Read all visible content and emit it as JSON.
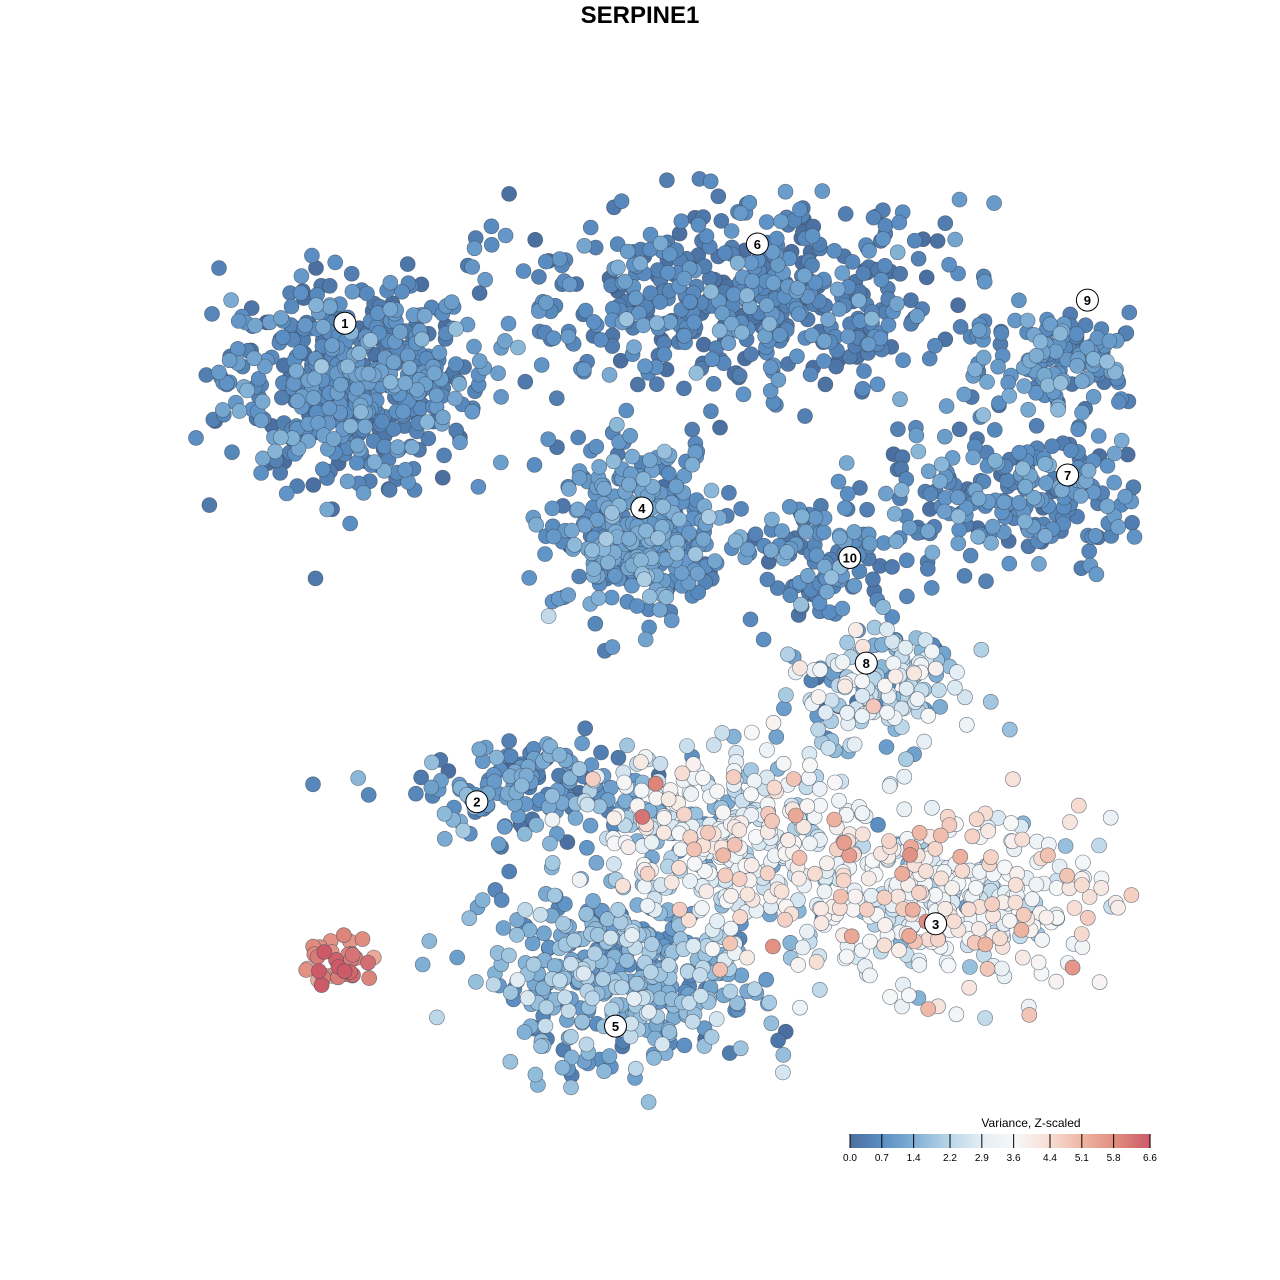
{
  "chart_data": {
    "type": "scatter",
    "title": "SERPINE1",
    "xlabel": "",
    "ylabel": "",
    "grid": false,
    "axes_visible": false,
    "colorbar": {
      "title": "Variance, Z-scaled",
      "min": 0.0,
      "max": 6.6,
      "ticks": [
        "0.0",
        "0.7",
        "1.4",
        "2.2",
        "2.9",
        "3.6",
        "4.4",
        "5.1",
        "5.8",
        "6.6"
      ],
      "tick_values": [
        0.0,
        0.7,
        1.4,
        2.2,
        2.9,
        3.6,
        4.4,
        5.1,
        5.8,
        6.6
      ],
      "colors": [
        "#4a6fa0",
        "#5b8fc4",
        "#84b3d6",
        "#bad6e8",
        "#e6eff5",
        "#f7f7f7",
        "#f7ddd3",
        "#eeb3a0",
        "#e08b7e",
        "#cc5a67"
      ],
      "placement": "bottom-right"
    },
    "clusters": [
      {
        "label": "1",
        "x": -9.5,
        "y": 7.9,
        "sd": [
          1.9,
          1.5
        ],
        "n": 560,
        "value_mean": 0.6,
        "value_sd": 0.4
      },
      {
        "label": "2",
        "x": -3.9,
        "y": -4.5,
        "sd": [
          1.8,
          0.8
        ],
        "n": 170,
        "value_mean": 0.8,
        "value_sd": 0.5
      },
      {
        "label": "3",
        "x": 8.3,
        "y": -8.0,
        "sd": [
          2.6,
          1.3
        ],
        "n": 380,
        "value_mean": 3.4,
        "value_sd": 0.9
      },
      {
        "label": "4",
        "x": -0.8,
        "y": 3.3,
        "sd": [
          1.3,
          1.3
        ],
        "n": 340,
        "value_mean": 0.9,
        "value_sd": 0.4
      },
      {
        "label": "5",
        "x": -1.2,
        "y": -10.2,
        "sd": [
          2.0,
          1.4
        ],
        "n": 420,
        "value_mean": 1.4,
        "value_sd": 0.6
      },
      {
        "label": "6",
        "x": 2.2,
        "y": 10.3,
        "sd": [
          3.3,
          1.4
        ],
        "n": 520,
        "value_mean": 0.5,
        "value_sd": 0.4
      },
      {
        "label": "7",
        "x": 11.3,
        "y": 4.5,
        "sd": [
          2.5,
          1.0
        ],
        "n": 260,
        "value_mean": 0.7,
        "value_sd": 0.4
      },
      {
        "label": "8",
        "x": 6.2,
        "y": -1.5,
        "sd": [
          1.4,
          0.9
        ],
        "n": 170,
        "value_mean": 2.0,
        "value_sd": 1.0
      },
      {
        "label": "9",
        "x": 12.1,
        "y": 8.5,
        "sd": [
          1.5,
          0.8
        ],
        "n": 140,
        "value_mean": 0.8,
        "value_sd": 0.4
      },
      {
        "label": "10",
        "x": 4.8,
        "y": 2.4,
        "sd": [
          1.2,
          1.0
        ],
        "n": 120,
        "value_mean": 0.7,
        "value_sd": 0.4
      },
      {
        "label": "",
        "x": 1.9,
        "y": -5.8,
        "sd": [
          2.3,
          1.2
        ],
        "n": 320,
        "value_mean": 3.0,
        "value_sd": 0.9
      },
      {
        "label": "",
        "x": -9.8,
        "y": -9.8,
        "sd": [
          0.6,
          0.4
        ],
        "n": 35,
        "value_mean": 6.0,
        "value_sd": 0.5
      }
    ],
    "label_positions": [
      {
        "label": "1",
        "x": -9.7,
        "y": 9.6
      },
      {
        "label": "2",
        "x": -5.7,
        "y": -4.9
      },
      {
        "label": "3",
        "x": 8.2,
        "y": -8.6
      },
      {
        "label": "4",
        "x": -0.7,
        "y": 4.0
      },
      {
        "label": "5",
        "x": -1.5,
        "y": -11.7
      },
      {
        "label": "6",
        "x": 2.8,
        "y": 12.0
      },
      {
        "label": "7",
        "x": 12.2,
        "y": 5.0
      },
      {
        "label": "8",
        "x": 6.1,
        "y": -0.7
      },
      {
        "label": "9",
        "x": 12.8,
        "y": 10.3
      },
      {
        "label": "10",
        "x": 5.6,
        "y": 2.5
      }
    ],
    "xlim": [
      -16,
      16
    ],
    "ylim": [
      -16,
      16
    ]
  }
}
